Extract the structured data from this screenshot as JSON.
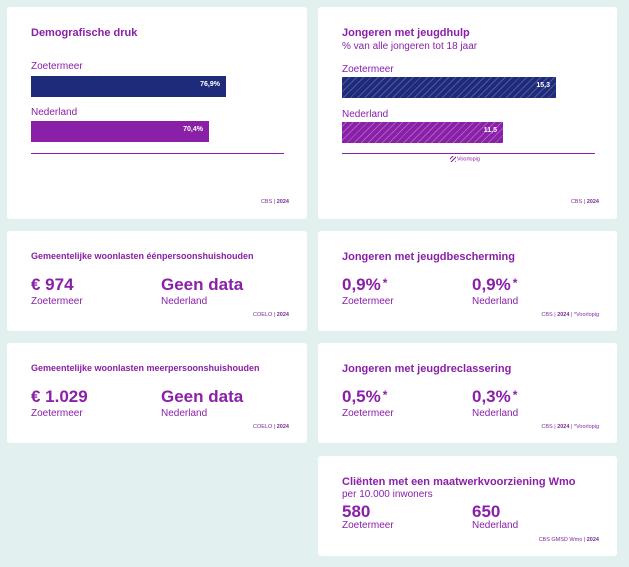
{
  "colors": {
    "background": "#e3f0f0",
    "card": "#ffffff",
    "purple": "#8a1fa8",
    "navy": "#1e2a7a"
  },
  "demografische_druk": {
    "title": "Demografische druk",
    "bars": [
      {
        "label": "Zoetermeer",
        "value_text": "76,9%",
        "value": 76.9,
        "color": "navy"
      },
      {
        "label": "Nederland",
        "value_text": "70,4%",
        "value": 70.4,
        "color": "purple"
      }
    ],
    "source_prefix": "CBS | ",
    "source_year": "2024"
  },
  "jongeren_jeugdhulp": {
    "title": "Jongeren met jeugdhulp",
    "subtitle": "% van alle jongeren tot 18 jaar",
    "bars": [
      {
        "label": "Zoetermeer",
        "value_text": "15,3",
        "value": 15.3,
        "color": "navy",
        "hatched": true
      },
      {
        "label": "Nederland",
        "value_text": "11,5",
        "value": 11.5,
        "color": "purple",
        "hatched": true
      }
    ],
    "legend": "Voorlopig",
    "source_prefix": "CBS | ",
    "source_year": "2024"
  },
  "woonlasten_een": {
    "title": "Gemeentelijke woonlasten éénpersoonshuishouden",
    "value_left": "€ 974",
    "label_left": "Zoetermeer",
    "value_right": "Geen data",
    "label_right": "Nederland",
    "source_prefix": "COELO | ",
    "source_year": "2024"
  },
  "jeugdbescherming": {
    "title": "Jongeren met jeugdbescherming",
    "value_left": "0,9%",
    "star_left": "*",
    "label_left": "Zoetermeer",
    "value_right": "0,9%",
    "star_right": "*",
    "label_right": "Nederland",
    "source_prefix": "CBS | ",
    "source_year": "2024",
    "source_suffix": " | *Voorlopig"
  },
  "woonlasten_meer": {
    "title": "Gemeentelijke woonlasten meerpersoonshuishouden",
    "value_left": "€ 1.029",
    "label_left": "Zoetermeer",
    "value_right": "Geen data",
    "label_right": "Nederland",
    "source_prefix": "COELO | ",
    "source_year": "2024"
  },
  "jeugdreclassering": {
    "title": "Jongeren met jeugdreclassering",
    "value_left": "0,5%",
    "star_left": "*",
    "label_left": "Zoetermeer",
    "value_right": "0,3%",
    "star_right": "*",
    "label_right": "Nederland",
    "source_prefix": "CBS | ",
    "source_year": "2024",
    "source_suffix": " | *Voorlopig"
  },
  "maatwerkvoorziening": {
    "title": "Cliënten met een maatwerkvoorziening Wmo",
    "subtitle": "per 10.000 inwoners",
    "value_left": "580",
    "label_left": "Zoetermeer",
    "value_right": "650",
    "label_right": "Nederland",
    "source_prefix": "CBS GMSD Wmo | ",
    "source_year": "2024"
  }
}
